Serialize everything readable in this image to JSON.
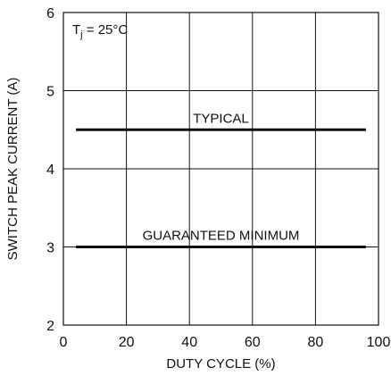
{
  "chart_data": {
    "type": "line",
    "title": "",
    "xlabel": "DUTY CYCLE (%)",
    "ylabel": "SWITCH PEAK CURRENT (A)",
    "xlim": [
      0,
      100
    ],
    "ylim": [
      2,
      6
    ],
    "x_ticks": [
      0,
      20,
      40,
      60,
      80,
      100
    ],
    "y_ticks": [
      2,
      3,
      4,
      5,
      6
    ],
    "grid": true,
    "condition": {
      "main": "T",
      "sub": "j",
      "rest": " = 25°C"
    },
    "series": [
      {
        "name": "TYPICAL",
        "x": [
          4,
          96
        ],
        "y": [
          4.5,
          4.5
        ]
      },
      {
        "name": "GUARANTEED MINIMUM",
        "x": [
          4,
          96
        ],
        "y": [
          3.0,
          3.0
        ]
      }
    ]
  }
}
